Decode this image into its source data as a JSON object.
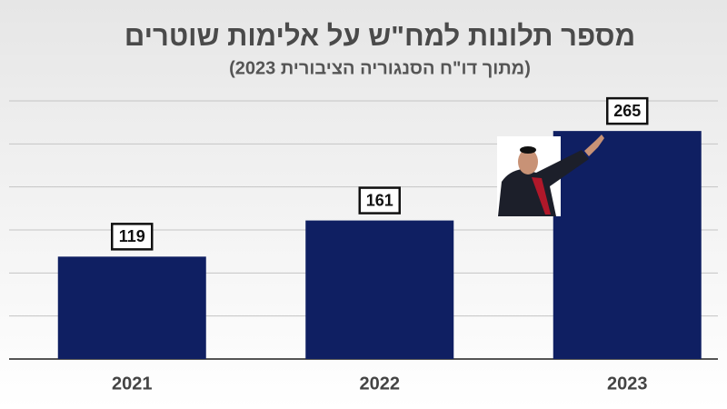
{
  "chart_data": {
    "type": "bar",
    "title": "מספר תלונות למח\"ש על אלימות שוטרים",
    "subtitle": "(מתוך דו\"ח הסנגוריה הציבורית 2023)",
    "categories": [
      "2021",
      "2022",
      "2023"
    ],
    "values": [
      119,
      161,
      265
    ],
    "color": "#0f1f62",
    "ylim": [
      0,
      300
    ],
    "yticks": [
      0,
      50,
      100,
      150,
      200,
      250,
      300
    ],
    "grid": true
  }
}
